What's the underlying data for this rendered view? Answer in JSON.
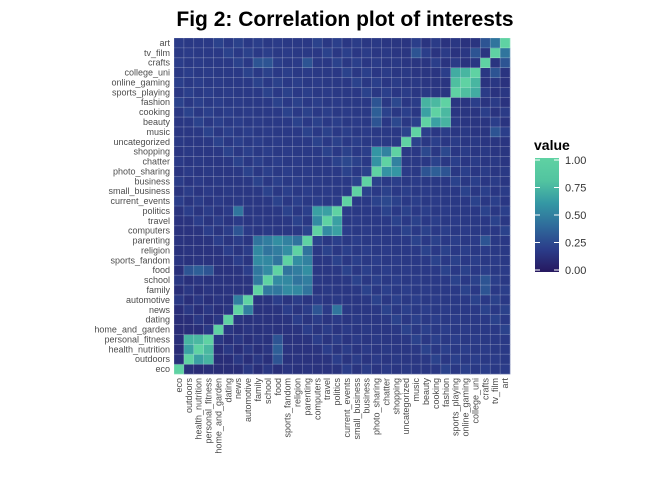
{
  "chart_data": {
    "type": "heatmap",
    "title": "Fig 2: Correlation plot of interests",
    "variables": [
      "eco",
      "outdoors",
      "health_nutrition",
      "personal_fitness",
      "home_and_garden",
      "dating",
      "news",
      "automotive",
      "family",
      "school",
      "food",
      "sports_fandom",
      "religion",
      "parenting",
      "computers",
      "travel",
      "politics",
      "current_events",
      "small_business",
      "business",
      "photo_sharing",
      "chatter",
      "shopping",
      "uncategorized",
      "music",
      "beauty",
      "cooking",
      "fashion",
      "sports_playing",
      "online_gaming",
      "college_uni",
      "crafts",
      "tv_film",
      "art"
    ],
    "clusters": [
      {
        "members": [
          "outdoors",
          "health_nutrition",
          "personal_fitness"
        ],
        "value": 0.7
      },
      {
        "members": [
          "family",
          "school",
          "food",
          "sports_fandom",
          "religion",
          "parenting"
        ],
        "value": 0.5
      },
      {
        "members": [
          "computers",
          "travel",
          "politics"
        ],
        "value": 0.6
      },
      {
        "members": [
          "news",
          "automotive"
        ],
        "value": 0.5
      },
      {
        "members": [
          "photo_sharing",
          "chatter",
          "shopping"
        ],
        "value": 0.55
      },
      {
        "members": [
          "beauty",
          "cooking",
          "fashion"
        ],
        "value": 0.7
      },
      {
        "members": [
          "sports_playing",
          "online_gaming",
          "college_uni"
        ],
        "value": 0.75
      }
    ],
    "extra_pairs": [
      {
        "a": "tv_film",
        "b": "art",
        "value": 0.45
      },
      {
        "a": "news",
        "b": "politics",
        "value": 0.45
      },
      {
        "a": "computers",
        "b": "news",
        "value": 0.3
      },
      {
        "a": "food",
        "b": "health_nutrition",
        "value": 0.35
      },
      {
        "a": "outdoors",
        "b": "food",
        "value": 0.3
      },
      {
        "a": "cooking",
        "b": "photo_sharing",
        "value": 0.35
      },
      {
        "a": "beauty",
        "b": "photo_sharing",
        "value": 0.3
      },
      {
        "a": "fashion",
        "b": "photo_sharing",
        "value": 0.3
      },
      {
        "a": "shopping",
        "b": "beauty",
        "value": 0.25
      },
      {
        "a": "crafts",
        "b": "family",
        "value": 0.3
      },
      {
        "a": "crafts",
        "b": "school",
        "value": 0.3
      },
      {
        "a": "crafts",
        "b": "parenting",
        "value": 0.3
      },
      {
        "a": "tv_film",
        "b": "music",
        "value": 0.3
      },
      {
        "a": "college_uni",
        "b": "tv_film",
        "value": 0.3
      },
      {
        "a": "personal_fitness",
        "b": "food",
        "value": 0.3
      },
      {
        "a": "crafts",
        "b": "art",
        "value": 0.3
      },
      {
        "a": "current_events",
        "b": "chatter",
        "value": 0.25
      },
      {
        "a": "fashion",
        "b": "shopping",
        "value": 0.25
      },
      {
        "a": "music",
        "b": "tv_film",
        "value": 0.3
      }
    ],
    "diagonal": 1.0,
    "background_value": 0.1,
    "legend": {
      "title": "value",
      "ticks": [
        "1.00",
        "0.75",
        "0.50",
        "0.25",
        "0.00"
      ],
      "tick_values": [
        1.0,
        0.75,
        0.5,
        0.25,
        0.0
      ],
      "range": [
        0,
        1
      ],
      "placement": "right"
    },
    "colors": [
      "#26185f",
      "#2b3d8a",
      "#2f6a9b",
      "#3497a4",
      "#52c4a0",
      "#5fd2a3"
    ],
    "grid": true
  }
}
